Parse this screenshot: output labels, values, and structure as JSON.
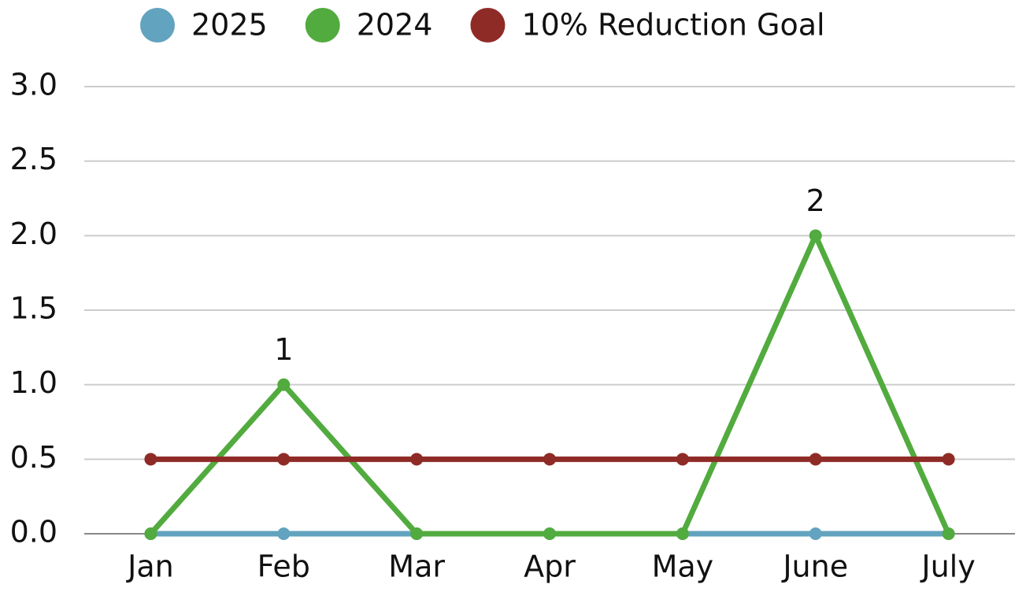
{
  "chart_data": {
    "type": "line",
    "categories": [
      "Jan",
      "Feb",
      "Mar",
      "Apr",
      "May",
      "June",
      "July"
    ],
    "series": [
      {
        "name": "2025",
        "color": "#62a3bf",
        "values": [
          0,
          0,
          0,
          0,
          0,
          0,
          0
        ]
      },
      {
        "name": "2024",
        "color": "#52ab3e",
        "values": [
          0,
          1,
          0,
          0,
          0,
          2,
          0
        ],
        "value_labels": [
          null,
          "1",
          null,
          null,
          null,
          "2",
          null
        ]
      },
      {
        "name": "10% Reduction Goal",
        "color": "#8f2b27",
        "values": [
          0.5,
          0.5,
          0.5,
          0.5,
          0.5,
          0.5,
          0.5
        ]
      }
    ],
    "ylim": [
      0,
      3
    ],
    "yticks": [
      {
        "value": 0,
        "label": "0.0"
      },
      0.5,
      {
        "value": 1,
        "label": "1.0"
      },
      1.5,
      {
        "value": 2,
        "label": "2.0"
      },
      2.5,
      {
        "value": 3,
        "label": "3.0"
      }
    ],
    "grid": true,
    "legend": "top"
  }
}
